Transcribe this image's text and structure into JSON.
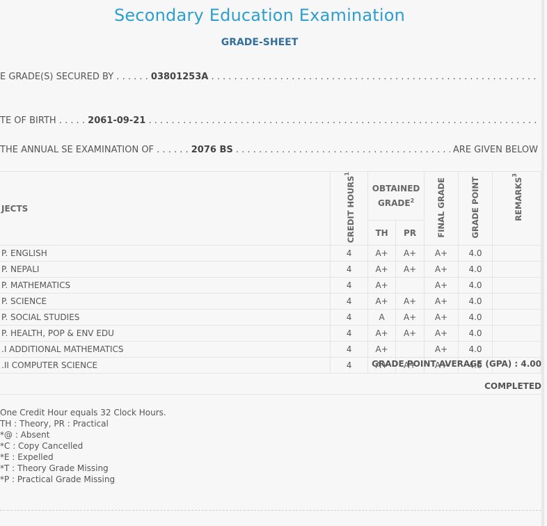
{
  "header": {
    "title": "Secondary Education Examination",
    "subtitle": "GRADE-SHEET"
  },
  "info": {
    "secured_label": "E GRADE(S) SECURED BY . . . . . .",
    "symbol_no": "03801253A",
    "dob_label": "TE OF BIRTH . . . . .",
    "dob": "2061-09-21",
    "exam_label": "THE ANNUAL SE EXAMINATION OF . . . . . .",
    "exam_year": "2076 BS",
    "exam_suffix": "ARE GIVEN BELOW"
  },
  "table": {
    "headers": {
      "subjects": "JECTS",
      "credit_hours": "CREDIT HOURS",
      "credit_sup": "1",
      "obtained_grade": "OBTAINED GRADE",
      "obtained_sup": "2",
      "th": "TH",
      "pr": "PR",
      "final_grade": "FINAL GRADE",
      "grade_point": "GRADE POINT",
      "remarks": "REMARKS",
      "remarks_sup": "3"
    },
    "rows": [
      {
        "subject": "P. ENGLISH",
        "credit": "4",
        "th": "A+",
        "pr": "A+",
        "final": "A+",
        "gp": "4.0",
        "remarks": ""
      },
      {
        "subject": "P. NEPALI",
        "credit": "4",
        "th": "A+",
        "pr": "A+",
        "final": "A+",
        "gp": "4.0",
        "remarks": ""
      },
      {
        "subject": "P. MATHEMATICS",
        "credit": "4",
        "th": "A+",
        "pr": "",
        "final": "A+",
        "gp": "4.0",
        "remarks": ""
      },
      {
        "subject": "P. SCIENCE",
        "credit": "4",
        "th": "A+",
        "pr": "A+",
        "final": "A+",
        "gp": "4.0",
        "remarks": ""
      },
      {
        "subject": "P. SOCIAL STUDIES",
        "credit": "4",
        "th": "A",
        "pr": "A+",
        "final": "A+",
        "gp": "4.0",
        "remarks": ""
      },
      {
        "subject": "P. HEALTH, POP & ENV EDU",
        "credit": "4",
        "th": "A+",
        "pr": "A+",
        "final": "A+",
        "gp": "4.0",
        "remarks": ""
      },
      {
        "subject": ".I ADDITIONAL MATHEMATICS",
        "credit": "4",
        "th": "A+",
        "pr": "",
        "final": "A+",
        "gp": "4.0",
        "remarks": ""
      },
      {
        "subject": ".II COMPUTER SCIENCE",
        "credit": "4",
        "th": "A+",
        "pr": "A+",
        "final": "A+",
        "gp": "4.0",
        "remarks": ""
      }
    ]
  },
  "summary": {
    "gpa": "GRADE POINT AVERAGE (GPA) : 4.00",
    "status": "COMPLETED"
  },
  "notes": [
    "One Credit Hour equals 32 Clock Hours.",
    "TH : Theory, PR : Practical",
    "*@ : Absent",
    "*C : Copy Cancelled",
    "*E : Expelled",
    "*T : Theory Grade Missing",
    "*P : Practical Grade Missing"
  ]
}
